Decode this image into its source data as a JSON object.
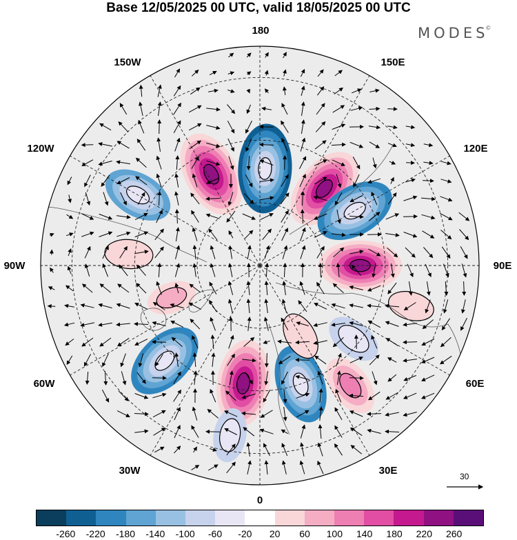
{
  "title": "Base 12/05/2025 00 UTC, valid 18/05/2025 00 UTC",
  "brand": "MODES",
  "brand_mark": "©",
  "longitude_labels": {
    "top": "180",
    "top_right": "150E",
    "right_upper": "120E",
    "right": "90E",
    "right_lower": "60E",
    "bottom_right": "30E",
    "bottom": "0",
    "bottom_left": "30W",
    "left_lower": "60W",
    "left": "90W",
    "left_upper": "120W",
    "top_left": "150W"
  },
  "reference_vector": "30",
  "colorbar": {
    "colors": [
      "#0b3d5c",
      "#105f93",
      "#2f86bf",
      "#5fa4d2",
      "#98c0e2",
      "#c7d2ec",
      "#e8e6f4",
      "#ffffff",
      "#f9d6d8",
      "#f5adc4",
      "#ee7fb3",
      "#e14ea3",
      "#c4198f",
      "#8f1182",
      "#5a0f78"
    ],
    "labels": [
      "-260",
      "-220",
      "-180",
      "-140",
      "-100",
      "-60",
      "-20",
      "20",
      "60",
      "100",
      "140",
      "180",
      "220",
      "260"
    ]
  },
  "anomalies": [
    {
      "lat": 57,
      "lon": -152,
      "value": 240
    },
    {
      "lat": 59,
      "lon": 177,
      "value": -250
    },
    {
      "lat": 58,
      "lon": 140,
      "value": 230
    },
    {
      "lat": 55,
      "lon": 120,
      "value": -210
    },
    {
      "lat": 58,
      "lon": 90,
      "value": 220
    },
    {
      "lat": 45,
      "lon": -120,
      "value": -160
    },
    {
      "lat": 47,
      "lon": -45,
      "value": -210
    },
    {
      "lat": 52,
      "lon": -8,
      "value": 240
    },
    {
      "lat": 50,
      "lon": 19,
      "value": -200
    },
    {
      "lat": 42,
      "lon": 37,
      "value": 120
    },
    {
      "lat": 52,
      "lon": 52,
      "value": -90
    },
    {
      "lat": 35,
      "lon": -10,
      "value": -80
    },
    {
      "lat": 60,
      "lon": -70,
      "value": 60
    },
    {
      "lat": 48,
      "lon": -95,
      "value": 50
    },
    {
      "lat": 40,
      "lon": 75,
      "value": 40
    },
    {
      "lat": 64,
      "lon": 30,
      "value": 50
    }
  ]
}
